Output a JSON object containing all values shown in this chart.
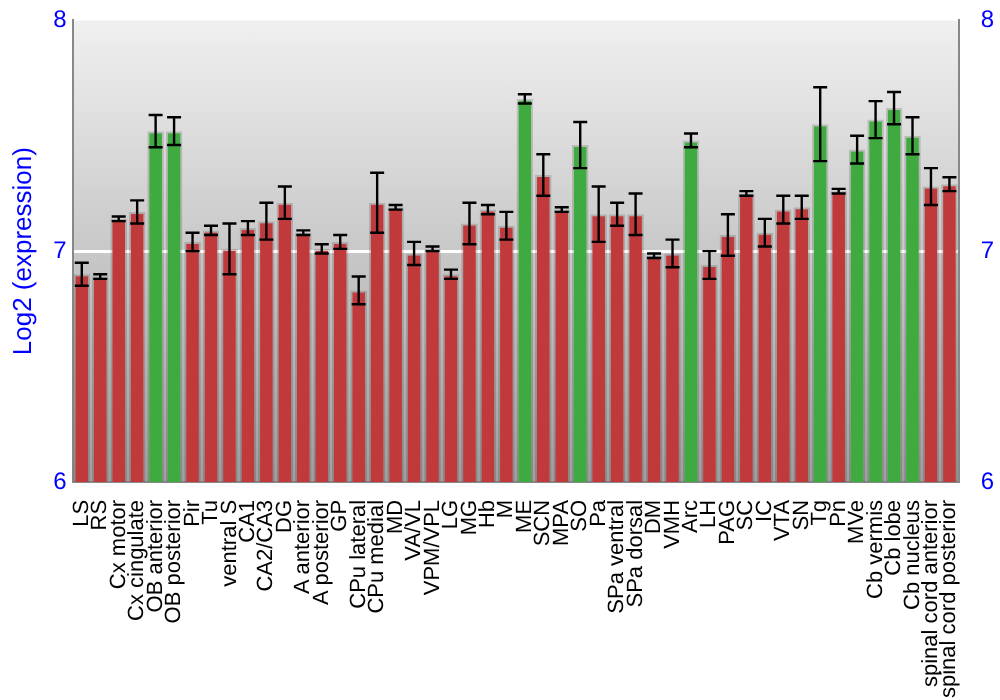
{
  "chart_data": {
    "type": "bar",
    "ylabel": "Log2 (expression)",
    "categories": [
      "LS",
      "RS",
      "Cx motor",
      "Cx cingulate",
      "OB anterior",
      "OB posterior",
      "Pir",
      "Tu",
      "ventral S",
      "CA1",
      "CA2/CA3",
      "DG",
      "A anterior",
      "A posterior",
      "GP",
      "CPu lateral",
      "CPu medial",
      "MD",
      "VA/VL",
      "VPM/VPL",
      "LG",
      "MG",
      "Hb",
      "M",
      "ME",
      "SCN",
      "MPA",
      "SO",
      "Pa",
      "SPa ventral",
      "SPa dorsal",
      "DM",
      "VMH",
      "Arc",
      "LH",
      "PAG",
      "SC",
      "IC",
      "VTA",
      "SN",
      "Tg",
      "Pn",
      "MVe",
      "Cb vermis",
      "Cb lobe",
      "Cb nucleus",
      "spinal cord anterior",
      "spinal cord posterior"
    ],
    "values": [
      6.9,
      6.89,
      7.14,
      7.17,
      7.52,
      7.52,
      7.04,
      7.09,
      7.01,
      7.1,
      7.13,
      7.21,
      7.08,
      7.01,
      7.04,
      6.83,
      7.21,
      7.19,
      6.99,
      7.01,
      6.9,
      7.12,
      7.18,
      7.11,
      7.66,
      7.33,
      7.18,
      7.46,
      7.16,
      7.16,
      7.16,
      6.98,
      6.99,
      7.48,
      6.94,
      7.07,
      7.25,
      7.08,
      7.18,
      7.19,
      7.55,
      7.26,
      7.44,
      7.57,
      7.62,
      7.5,
      7.28,
      7.29
    ],
    "errors": [
      0.05,
      0.01,
      0.01,
      0.05,
      0.07,
      0.06,
      0.04,
      0.02,
      0.11,
      0.03,
      0.08,
      0.07,
      0.01,
      0.02,
      0.03,
      0.06,
      0.13,
      0.01,
      0.05,
      0.01,
      0.02,
      0.09,
      0.02,
      0.06,
      0.02,
      0.09,
      0.01,
      0.1,
      0.12,
      0.05,
      0.09,
      0.01,
      0.06,
      0.03,
      0.06,
      0.09,
      0.01,
      0.06,
      0.06,
      0.05,
      0.16,
      0.01,
      0.06,
      0.08,
      0.07,
      0.08,
      0.08,
      0.03
    ],
    "colors": [
      "#c03a3c",
      "#c03a3c",
      "#c03a3c",
      "#c03a3c",
      "#3faa3f",
      "#3faa3f",
      "#c03a3c",
      "#c03a3c",
      "#c03a3c",
      "#c03a3c",
      "#c03a3c",
      "#c03a3c",
      "#c03a3c",
      "#c03a3c",
      "#c03a3c",
      "#c03a3c",
      "#c03a3c",
      "#c03a3c",
      "#c03a3c",
      "#c03a3c",
      "#c03a3c",
      "#c03a3c",
      "#c03a3c",
      "#c03a3c",
      "#3faa3f",
      "#c03a3c",
      "#c03a3c",
      "#3faa3f",
      "#c03a3c",
      "#c03a3c",
      "#c03a3c",
      "#c03a3c",
      "#c03a3c",
      "#3faa3f",
      "#c03a3c",
      "#c03a3c",
      "#c03a3c",
      "#c03a3c",
      "#c03a3c",
      "#c03a3c",
      "#3faa3f",
      "#c03a3c",
      "#3faa3f",
      "#3faa3f",
      "#3faa3f",
      "#3faa3f",
      "#c03a3c",
      "#c03a3c"
    ],
    "ylim": [
      6,
      8
    ],
    "yticks": [
      6,
      7,
      8
    ],
    "y2lim": [
      6,
      8
    ],
    "y2ticks": [
      6,
      7,
      8
    ],
    "grid": "y",
    "legend": false
  }
}
